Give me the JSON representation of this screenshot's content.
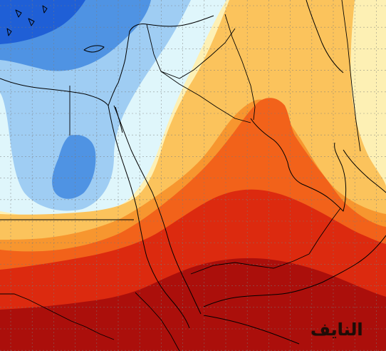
{
  "watermark": {
    "text": "النايف"
  },
  "palette": {
    "deep_blue": "#1f5fd6",
    "mid_blue": "#4f93e3",
    "light_blue": "#9fcdf3",
    "pale_cyan": "#dff6fb",
    "pale_yellow": "#fdf0b4",
    "light_orange": "#fbc35c",
    "orange": "#f7962f",
    "dark_orange": "#f2621a",
    "red": "#dc2a0f",
    "dark_red": "#ab0f0b"
  },
  "grid": {
    "visible": true,
    "style": "dotted"
  }
}
